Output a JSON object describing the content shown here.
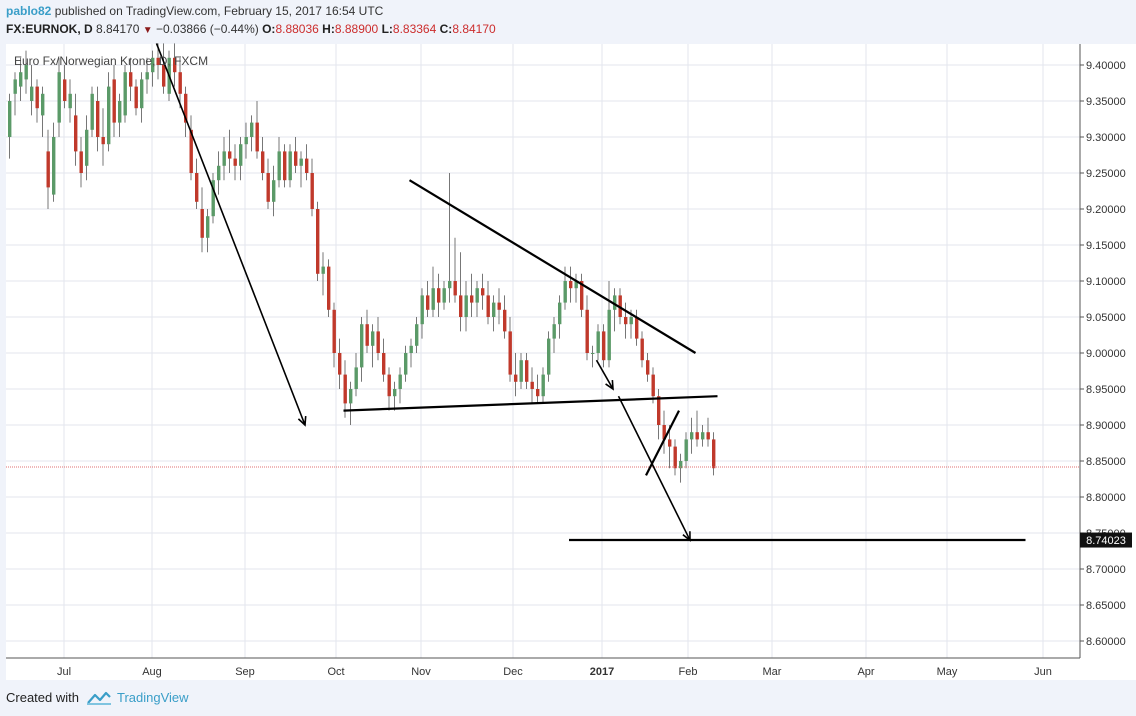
{
  "header": {
    "author": "pablo82",
    "published_text": "published on TradingView.com, February 15, 2017 16:54 UTC",
    "symbol_label": "FX:EURNOK, D",
    "last_price": "8.84170",
    "change": "−0.03866 (−0.44%)",
    "open_key": "O:",
    "open_value": "8.88036",
    "high_key": "H:",
    "high_value": "8.88900",
    "low_key": "L:",
    "low_value": "8.83364",
    "close_key": "C:",
    "close_value": "8.84170"
  },
  "chart_data": {
    "type": "candlestick",
    "title": "Euro Fx/Norwegian Krone, D, FXCM",
    "y_axis": {
      "ylim": [
        8.58,
        9.43
      ],
      "ticks": [
        "9.40000",
        "9.35000",
        "9.30000",
        "9.25000",
        "9.20000",
        "9.15000",
        "9.10000",
        "9.05000",
        "9.00000",
        "8.95000",
        "8.90000",
        "8.85000",
        "8.80000",
        "8.75000",
        "8.70000",
        "8.65000",
        "8.60000"
      ],
      "highlight_label": "8.74023",
      "highlight_value": 8.74023
    },
    "x_axis": {
      "ticks": [
        "Jul",
        "Aug",
        "Sep",
        "Oct",
        "Nov",
        "Dec",
        "2017",
        "Feb",
        "Mar",
        "Apr",
        "May",
        "Jun"
      ],
      "bold_ticks": [
        "2017"
      ]
    },
    "last_price_line": 8.8417,
    "candles": [
      {
        "o": 9.3,
        "h": 9.36,
        "l": 9.27,
        "c": 9.35
      },
      {
        "o": 9.36,
        "h": 9.39,
        "l": 9.33,
        "c": 9.38
      },
      {
        "o": 9.37,
        "h": 9.41,
        "l": 9.35,
        "c": 9.39
      },
      {
        "o": 9.38,
        "h": 9.42,
        "l": 9.36,
        "c": 9.4
      },
      {
        "o": 9.35,
        "h": 9.4,
        "l": 9.33,
        "c": 9.37
      },
      {
        "o": 9.37,
        "h": 9.38,
        "l": 9.32,
        "c": 9.34
      },
      {
        "o": 9.33,
        "h": 9.37,
        "l": 9.3,
        "c": 9.36
      },
      {
        "o": 9.28,
        "h": 9.31,
        "l": 9.2,
        "c": 9.23
      },
      {
        "o": 9.22,
        "h": 9.32,
        "l": 9.21,
        "c": 9.3
      },
      {
        "o": 9.32,
        "h": 9.41,
        "l": 9.3,
        "c": 9.39
      },
      {
        "o": 9.38,
        "h": 9.4,
        "l": 9.34,
        "c": 9.35
      },
      {
        "o": 9.34,
        "h": 9.38,
        "l": 9.32,
        "c": 9.36
      },
      {
        "o": 9.33,
        "h": 9.36,
        "l": 9.26,
        "c": 9.28
      },
      {
        "o": 9.28,
        "h": 9.3,
        "l": 9.23,
        "c": 9.25
      },
      {
        "o": 9.26,
        "h": 9.33,
        "l": 9.24,
        "c": 9.31
      },
      {
        "o": 9.31,
        "h": 9.37,
        "l": 9.3,
        "c": 9.36
      },
      {
        "o": 9.35,
        "h": 9.37,
        "l": 9.28,
        "c": 9.3
      },
      {
        "o": 9.3,
        "h": 9.34,
        "l": 9.26,
        "c": 9.29
      },
      {
        "o": 9.29,
        "h": 9.39,
        "l": 9.28,
        "c": 9.37
      },
      {
        "o": 9.38,
        "h": 9.4,
        "l": 9.3,
        "c": 9.32
      },
      {
        "o": 9.32,
        "h": 9.36,
        "l": 9.3,
        "c": 9.35
      },
      {
        "o": 9.33,
        "h": 9.4,
        "l": 9.32,
        "c": 9.39
      },
      {
        "o": 9.39,
        "h": 9.41,
        "l": 9.35,
        "c": 9.37
      },
      {
        "o": 9.37,
        "h": 9.38,
        "l": 9.33,
        "c": 9.34
      },
      {
        "o": 9.34,
        "h": 9.39,
        "l": 9.32,
        "c": 9.38
      },
      {
        "o": 9.38,
        "h": 9.41,
        "l": 9.36,
        "c": 9.39
      },
      {
        "o": 9.39,
        "h": 9.42,
        "l": 9.37,
        "c": 9.41
      },
      {
        "o": 9.41,
        "h": 9.43,
        "l": 9.38,
        "c": 9.4
      },
      {
        "o": 9.4,
        "h": 9.43,
        "l": 9.36,
        "c": 9.37
      },
      {
        "o": 9.36,
        "h": 9.42,
        "l": 9.35,
        "c": 9.41
      },
      {
        "o": 9.41,
        "h": 9.43,
        "l": 9.37,
        "c": 9.39
      },
      {
        "o": 9.39,
        "h": 9.41,
        "l": 9.34,
        "c": 9.36
      },
      {
        "o": 9.36,
        "h": 9.37,
        "l": 9.3,
        "c": 9.32
      },
      {
        "o": 9.31,
        "h": 9.33,
        "l": 9.24,
        "c": 9.25
      },
      {
        "o": 9.25,
        "h": 9.27,
        "l": 9.2,
        "c": 9.21
      },
      {
        "o": 9.2,
        "h": 9.23,
        "l": 9.14,
        "c": 9.16
      },
      {
        "o": 9.16,
        "h": 9.2,
        "l": 9.14,
        "c": 9.19
      },
      {
        "o": 9.19,
        "h": 9.25,
        "l": 9.18,
        "c": 9.24
      },
      {
        "o": 9.24,
        "h": 9.28,
        "l": 9.22,
        "c": 9.26
      },
      {
        "o": 9.26,
        "h": 9.3,
        "l": 9.24,
        "c": 9.28
      },
      {
        "o": 9.28,
        "h": 9.31,
        "l": 9.25,
        "c": 9.27
      },
      {
        "o": 9.27,
        "h": 9.29,
        "l": 9.24,
        "c": 9.26
      },
      {
        "o": 9.26,
        "h": 9.3,
        "l": 9.24,
        "c": 9.29
      },
      {
        "o": 9.29,
        "h": 9.32,
        "l": 9.27,
        "c": 9.3
      },
      {
        "o": 9.3,
        "h": 9.33,
        "l": 9.28,
        "c": 9.32
      },
      {
        "o": 9.32,
        "h": 9.35,
        "l": 9.27,
        "c": 9.28
      },
      {
        "o": 9.28,
        "h": 9.3,
        "l": 9.24,
        "c": 9.25
      },
      {
        "o": 9.25,
        "h": 9.27,
        "l": 9.2,
        "c": 9.21
      },
      {
        "o": 9.21,
        "h": 9.26,
        "l": 9.19,
        "c": 9.24
      },
      {
        "o": 9.24,
        "h": 9.3,
        "l": 9.23,
        "c": 9.28
      },
      {
        "o": 9.28,
        "h": 9.29,
        "l": 9.23,
        "c": 9.24
      },
      {
        "o": 9.24,
        "h": 9.29,
        "l": 9.23,
        "c": 9.28
      },
      {
        "o": 9.28,
        "h": 9.3,
        "l": 9.25,
        "c": 9.26
      },
      {
        "o": 9.26,
        "h": 9.28,
        "l": 9.23,
        "c": 9.27
      },
      {
        "o": 9.27,
        "h": 9.29,
        "l": 9.24,
        "c": 9.25
      },
      {
        "o": 9.25,
        "h": 9.27,
        "l": 9.19,
        "c": 9.2
      },
      {
        "o": 9.2,
        "h": 9.21,
        "l": 9.1,
        "c": 9.11
      },
      {
        "o": 9.11,
        "h": 9.14,
        "l": 9.08,
        "c": 9.12
      },
      {
        "o": 9.12,
        "h": 9.13,
        "l": 9.05,
        "c": 9.06
      },
      {
        "o": 9.06,
        "h": 9.07,
        "l": 8.98,
        "c": 9.0
      },
      {
        "o": 9.0,
        "h": 9.02,
        "l": 8.95,
        "c": 8.97
      },
      {
        "o": 8.97,
        "h": 8.99,
        "l": 8.91,
        "c": 8.93
      },
      {
        "o": 8.93,
        "h": 8.96,
        "l": 8.9,
        "c": 8.95
      },
      {
        "o": 8.95,
        "h": 9.0,
        "l": 8.94,
        "c": 8.98
      },
      {
        "o": 8.98,
        "h": 9.05,
        "l": 8.96,
        "c": 9.04
      },
      {
        "o": 9.04,
        "h": 9.06,
        "l": 9.0,
        "c": 9.01
      },
      {
        "o": 9.01,
        "h": 9.04,
        "l": 8.98,
        "c": 9.03
      },
      {
        "o": 9.03,
        "h": 9.05,
        "l": 8.99,
        "c": 9.0
      },
      {
        "o": 9.0,
        "h": 9.02,
        "l": 8.96,
        "c": 8.97
      },
      {
        "o": 8.97,
        "h": 8.98,
        "l": 8.92,
        "c": 8.94
      },
      {
        "o": 8.94,
        "h": 8.96,
        "l": 8.92,
        "c": 8.95
      },
      {
        "o": 8.95,
        "h": 8.98,
        "l": 8.93,
        "c": 8.97
      },
      {
        "o": 8.97,
        "h": 9.01,
        "l": 8.96,
        "c": 9.0
      },
      {
        "o": 9.0,
        "h": 9.02,
        "l": 8.98,
        "c": 9.01
      },
      {
        "o": 9.01,
        "h": 9.05,
        "l": 9.0,
        "c": 9.04
      },
      {
        "o": 9.04,
        "h": 9.09,
        "l": 9.02,
        "c": 9.08
      },
      {
        "o": 9.08,
        "h": 9.1,
        "l": 9.05,
        "c": 9.06
      },
      {
        "o": 9.06,
        "h": 9.12,
        "l": 9.05,
        "c": 9.09
      },
      {
        "o": 9.09,
        "h": 9.11,
        "l": 9.05,
        "c": 9.07
      },
      {
        "o": 9.07,
        "h": 9.1,
        "l": 9.06,
        "c": 9.09
      },
      {
        "o": 9.09,
        "h": 9.25,
        "l": 9.07,
        "c": 9.1
      },
      {
        "o": 9.1,
        "h": 9.16,
        "l": 9.07,
        "c": 9.08
      },
      {
        "o": 9.08,
        "h": 9.14,
        "l": 9.03,
        "c": 9.05
      },
      {
        "o": 9.05,
        "h": 9.1,
        "l": 9.03,
        "c": 9.08
      },
      {
        "o": 9.08,
        "h": 9.11,
        "l": 9.05,
        "c": 9.07
      },
      {
        "o": 9.07,
        "h": 9.1,
        "l": 9.05,
        "c": 9.09
      },
      {
        "o": 9.09,
        "h": 9.11,
        "l": 9.06,
        "c": 9.08
      },
      {
        "o": 9.08,
        "h": 9.1,
        "l": 9.04,
        "c": 9.05
      },
      {
        "o": 9.05,
        "h": 9.08,
        "l": 9.03,
        "c": 9.07
      },
      {
        "o": 9.07,
        "h": 9.09,
        "l": 9.04,
        "c": 9.06
      },
      {
        "o": 9.06,
        "h": 9.08,
        "l": 9.02,
        "c": 9.03
      },
      {
        "o": 9.03,
        "h": 9.05,
        "l": 8.96,
        "c": 8.97
      },
      {
        "o": 8.97,
        "h": 9.0,
        "l": 8.94,
        "c": 8.96
      },
      {
        "o": 8.96,
        "h": 9.0,
        "l": 8.95,
        "c": 8.99
      },
      {
        "o": 8.99,
        "h": 9.0,
        "l": 8.95,
        "c": 8.96
      },
      {
        "o": 8.96,
        "h": 8.98,
        "l": 8.93,
        "c": 8.95
      },
      {
        "o": 8.95,
        "h": 8.97,
        "l": 8.93,
        "c": 8.94
      },
      {
        "o": 8.94,
        "h": 8.98,
        "l": 8.93,
        "c": 8.97
      },
      {
        "o": 8.97,
        "h": 9.03,
        "l": 8.96,
        "c": 9.02
      },
      {
        "o": 9.02,
        "h": 9.05,
        "l": 9.0,
        "c": 9.04
      },
      {
        "o": 9.04,
        "h": 9.08,
        "l": 9.02,
        "c": 9.07
      },
      {
        "o": 9.07,
        "h": 9.12,
        "l": 9.06,
        "c": 9.1
      },
      {
        "o": 9.1,
        "h": 9.12,
        "l": 9.07,
        "c": 9.09
      },
      {
        "o": 9.09,
        "h": 9.11,
        "l": 9.07,
        "c": 9.1
      },
      {
        "o": 9.1,
        "h": 9.11,
        "l": 9.05,
        "c": 9.06
      },
      {
        "o": 9.06,
        "h": 9.08,
        "l": 8.99,
        "c": 9.0
      },
      {
        "o": 9.0,
        "h": 9.01,
        "l": 8.98,
        "c": 9.0
      },
      {
        "o": 9.0,
        "h": 9.04,
        "l": 8.99,
        "c": 9.03
      },
      {
        "o": 9.03,
        "h": 9.04,
        "l": 8.98,
        "c": 8.99
      },
      {
        "o": 8.99,
        "h": 9.1,
        "l": 8.98,
        "c": 9.06
      },
      {
        "o": 9.06,
        "h": 9.09,
        "l": 9.03,
        "c": 9.08
      },
      {
        "o": 9.08,
        "h": 9.09,
        "l": 9.04,
        "c": 9.05
      },
      {
        "o": 9.05,
        "h": 9.07,
        "l": 9.02,
        "c": 9.04
      },
      {
        "o": 9.04,
        "h": 9.06,
        "l": 9.02,
        "c": 9.05
      },
      {
        "o": 9.05,
        "h": 9.06,
        "l": 9.01,
        "c": 9.02
      },
      {
        "o": 9.02,
        "h": 9.03,
        "l": 8.98,
        "c": 8.99
      },
      {
        "o": 8.99,
        "h": 9.0,
        "l": 8.96,
        "c": 8.97
      },
      {
        "o": 8.97,
        "h": 8.98,
        "l": 8.93,
        "c": 8.94
      },
      {
        "o": 8.94,
        "h": 8.95,
        "l": 8.88,
        "c": 8.9
      },
      {
        "o": 8.9,
        "h": 8.92,
        "l": 8.86,
        "c": 8.88
      },
      {
        "o": 8.88,
        "h": 8.9,
        "l": 8.84,
        "c": 8.87
      },
      {
        "o": 8.87,
        "h": 8.88,
        "l": 8.83,
        "c": 8.84
      },
      {
        "o": 8.84,
        "h": 8.86,
        "l": 8.82,
        "c": 8.85
      },
      {
        "o": 8.85,
        "h": 8.89,
        "l": 8.84,
        "c": 8.88
      },
      {
        "o": 8.88,
        "h": 8.91,
        "l": 8.86,
        "c": 8.89
      },
      {
        "o": 8.89,
        "h": 8.92,
        "l": 8.87,
        "c": 8.88
      },
      {
        "o": 8.88,
        "h": 8.9,
        "l": 8.87,
        "c": 8.89
      },
      {
        "o": 8.89,
        "h": 8.91,
        "l": 8.87,
        "c": 8.88
      },
      {
        "o": 8.88,
        "h": 8.89,
        "l": 8.83,
        "c": 8.84
      }
    ],
    "drawings": [
      {
        "kind": "arrow",
        "from": {
          "date_index": 27,
          "price": 9.43
        },
        "to": {
          "date_index": 54,
          "price": 8.9
        }
      },
      {
        "kind": "trendline",
        "from": {
          "date_index": 73,
          "price": 9.24
        },
        "to": {
          "date_index": 125,
          "price": 9.0
        }
      },
      {
        "kind": "trendline",
        "from": {
          "date_index": 61,
          "price": 8.92
        },
        "to": {
          "date_index": 129,
          "price": 8.94
        }
      },
      {
        "kind": "arrow",
        "from": {
          "date_index": 107,
          "price": 8.99
        },
        "to": {
          "date_index": 110,
          "price": 8.95
        }
      },
      {
        "kind": "trendline",
        "from": {
          "date_index": 116,
          "price": 8.83
        },
        "to": {
          "date_index": 122,
          "price": 8.92
        }
      },
      {
        "kind": "arrow",
        "from": {
          "date_index": 111,
          "price": 8.94
        },
        "to": {
          "date_index": 124,
          "price": 8.74
        }
      },
      {
        "kind": "hline",
        "from": {
          "date_index": 102,
          "price": 8.74023
        },
        "to": {
          "date_index": 185,
          "price": 8.74023
        }
      }
    ],
    "colors": {
      "up": "#5b9a68",
      "down": "#c0392b",
      "wick": "#777777",
      "grid": "#e3e6ee",
      "drawing": "#000000",
      "last_price_line": "#e07070"
    },
    "grid": true
  },
  "footer": {
    "created_with": "Created with",
    "brand": "TradingView"
  }
}
